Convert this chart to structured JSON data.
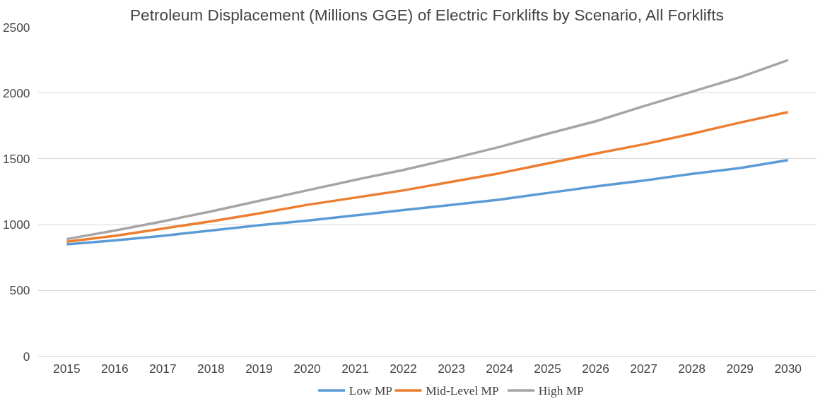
{
  "chart_data": {
    "type": "line",
    "title": "Petroleum Displacement (Millions GGE) of Electric Forklifts by Scenario, All Forklifts",
    "categories": [
      "2015",
      "2016",
      "2017",
      "2018",
      "2019",
      "2020",
      "2021",
      "2022",
      "2023",
      "2024",
      "2025",
      "2026",
      "2027",
      "2028",
      "2029",
      "2030"
    ],
    "series": [
      {
        "name": "Low MP",
        "color": "#5b9bd5",
        "values": [
          850,
          880,
          915,
          955,
          995,
          1030,
          1070,
          1110,
          1150,
          1190,
          1240,
          1290,
          1335,
          1385,
          1430,
          1490
        ]
      },
      {
        "name": "Mid-Level MP",
        "color": "#ed7d31",
        "values": [
          870,
          915,
          970,
          1025,
          1085,
          1150,
          1205,
          1260,
          1325,
          1390,
          1465,
          1540,
          1610,
          1690,
          1775,
          1855
        ]
      },
      {
        "name": "High MP",
        "color": "#a5a5a5",
        "values": [
          890,
          955,
          1025,
          1100,
          1180,
          1260,
          1340,
          1415,
          1500,
          1590,
          1690,
          1785,
          1900,
          2010,
          2120,
          2250
        ]
      }
    ],
    "ylim": [
      0,
      2500
    ],
    "yticks": [
      0,
      500,
      1000,
      1500,
      2000,
      2500
    ],
    "grid": "y",
    "legend": "bottom",
    "marker": "none",
    "line_style": "solid"
  }
}
